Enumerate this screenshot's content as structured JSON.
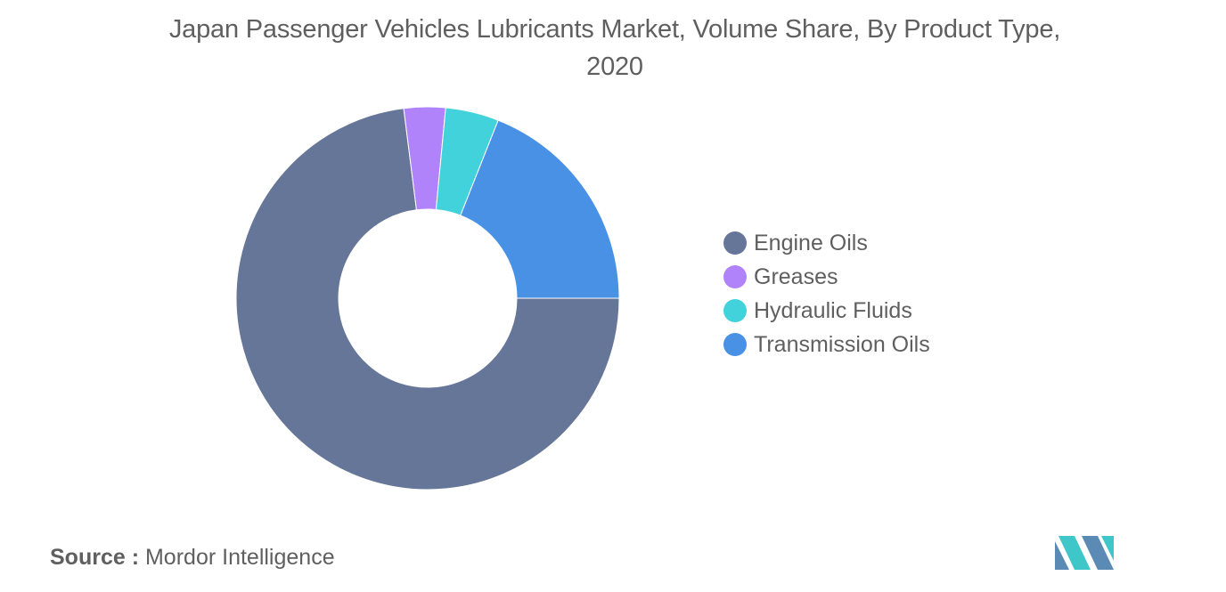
{
  "chart_data": {
    "type": "pie",
    "donut": true,
    "title": "Japan Passenger Vehicles Lubricants Market, Volume Share, By Product Type, 2020",
    "labels": [
      "Engine Oils",
      "Greases",
      "Hydraulic Fluids",
      "Transmission Oils"
    ],
    "values": [
      73.0,
      3.5,
      4.5,
      19.0
    ],
    "colors": [
      "#657698",
      "#b183fa",
      "#41d2dc",
      "#4991e4"
    ],
    "legend_position": "right"
  },
  "source": {
    "label": "Source :",
    "text": "Mordor Intelligence"
  },
  "logo": {
    "icon": "mordor-intelligence-logo-icon",
    "colors": [
      "#5b8bb5",
      "#3ec6c9"
    ]
  }
}
